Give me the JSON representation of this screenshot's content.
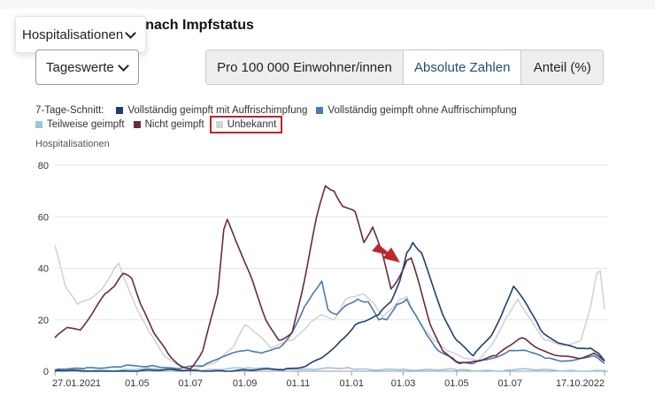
{
  "header": {
    "title": "n nach Impfstatus"
  },
  "metric_dropdown": {
    "label": "Hospitalisationen",
    "icon": "chevron-down-icon"
  },
  "period_select": {
    "label": "Tageswerte",
    "icon": "chevron-down-icon"
  },
  "segments": [
    {
      "label": "Pro 100 000 Einwohner/innen",
      "selected": false
    },
    {
      "label": "Absolute Zahlen",
      "selected": true
    },
    {
      "label": "Anteil (%)",
      "selected": false
    }
  ],
  "legend": {
    "prefix": "7-Tage-Schnitt:",
    "items": [
      {
        "label": "Vollständig geimpft mit Auffrischimpfung",
        "color": "#1f3f73"
      },
      {
        "label": "Vollständig geimpft ohne Auffrischimpfung",
        "color": "#4a7ab3"
      },
      {
        "label": "Teilweise geimpft",
        "color": "#9cc3e0"
      },
      {
        "label": "Nicht geimpft",
        "color": "#6b2a3e"
      },
      {
        "label": "Unbekannt",
        "color": "#d3d3d3",
        "highlighted": true
      }
    ]
  },
  "annotation": {
    "arrow_color": "#c0242c"
  },
  "chart_data": {
    "type": "line",
    "ylabel": "Hospitalisationen",
    "ylim": [
      0,
      80
    ],
    "yticks": [
      0,
      20,
      40,
      60,
      80
    ],
    "xlim": [
      "2021-01-27",
      "2022-10-17"
    ],
    "xticks": [
      {
        "date": "2021-01-27",
        "label": "27.01.2021"
      },
      {
        "date": "2021-05-01",
        "label": "01.05"
      },
      {
        "date": "2021-07-01",
        "label": "01.07"
      },
      {
        "date": "2021-09-01",
        "label": "01.09"
      },
      {
        "date": "2021-11-01",
        "label": "01.11"
      },
      {
        "date": "2022-01-01",
        "label": "01.01"
      },
      {
        "date": "2022-03-01",
        "label": "01.03"
      },
      {
        "date": "2022-05-01",
        "label": "01.05"
      },
      {
        "date": "2022-07-01",
        "label": "01.07"
      },
      {
        "date": "2022-10-17",
        "label": "17.10.2022"
      }
    ],
    "grid": true,
    "series": [
      {
        "name": "Unbekannt",
        "color": "#d3d3d3",
        "points": [
          [
            "2021-01-27",
            49
          ],
          [
            "2021-02-08",
            33
          ],
          [
            "2021-02-22",
            26
          ],
          [
            "2021-03-08",
            28
          ],
          [
            "2021-03-22",
            32
          ],
          [
            "2021-04-05",
            40
          ],
          [
            "2021-04-10",
            42
          ],
          [
            "2021-04-20",
            33
          ],
          [
            "2021-05-01",
            24
          ],
          [
            "2021-05-15",
            15
          ],
          [
            "2021-06-01",
            6
          ],
          [
            "2021-06-20",
            2
          ],
          [
            "2021-07-05",
            1
          ],
          [
            "2021-08-01",
            4
          ],
          [
            "2021-08-20",
            10
          ],
          [
            "2021-09-01",
            18
          ],
          [
            "2021-09-20",
            13
          ],
          [
            "2021-10-01",
            9
          ],
          [
            "2021-10-25",
            12
          ],
          [
            "2021-11-15",
            19
          ],
          [
            "2021-11-28",
            22
          ],
          [
            "2021-12-12",
            20
          ],
          [
            "2021-12-25",
            28
          ],
          [
            "2022-01-05",
            29
          ],
          [
            "2022-01-15",
            30
          ],
          [
            "2022-01-25",
            27
          ],
          [
            "2022-02-05",
            21
          ],
          [
            "2022-02-15",
            24
          ],
          [
            "2022-02-25",
            28
          ],
          [
            "2022-03-05",
            29
          ],
          [
            "2022-03-15",
            22
          ],
          [
            "2022-03-25",
            16
          ],
          [
            "2022-04-05",
            12
          ],
          [
            "2022-04-20",
            8
          ],
          [
            "2022-05-10",
            5
          ],
          [
            "2022-05-25",
            4
          ],
          [
            "2022-06-10",
            10
          ],
          [
            "2022-06-25",
            20
          ],
          [
            "2022-07-10",
            28
          ],
          [
            "2022-07-25",
            20
          ],
          [
            "2022-08-10",
            12
          ],
          [
            "2022-09-01",
            10
          ],
          [
            "2022-09-20",
            12
          ],
          [
            "2022-10-01",
            25
          ],
          [
            "2022-10-08",
            38
          ],
          [
            "2022-10-12",
            39
          ],
          [
            "2022-10-17",
            24
          ]
        ]
      },
      {
        "name": "Teilweise geimpft",
        "color": "#9cc3e0",
        "points": [
          [
            "2021-01-27",
            0.3
          ],
          [
            "2021-05-01",
            0.8
          ],
          [
            "2021-07-01",
            0.4
          ],
          [
            "2021-09-01",
            1
          ],
          [
            "2021-11-01",
            0.8
          ],
          [
            "2022-01-01",
            1
          ],
          [
            "2022-03-01",
            0.8
          ],
          [
            "2022-05-01",
            0.4
          ],
          [
            "2022-07-01",
            0.5
          ],
          [
            "2022-10-17",
            0.3
          ]
        ]
      },
      {
        "name": "Vollständig geimpft ohne Auffrischimpfung",
        "color": "#4a7ab3",
        "points": [
          [
            "2021-01-27",
            0.5
          ],
          [
            "2021-03-01",
            1
          ],
          [
            "2021-04-15",
            2
          ],
          [
            "2021-05-15",
            2
          ],
          [
            "2021-06-15",
            1
          ],
          [
            "2021-07-15",
            2
          ],
          [
            "2021-08-10",
            6
          ],
          [
            "2021-09-01",
            8
          ],
          [
            "2021-09-20",
            7
          ],
          [
            "2021-10-10",
            9
          ],
          [
            "2021-10-25",
            15
          ],
          [
            "2021-11-08",
            25
          ],
          [
            "2021-11-22",
            32
          ],
          [
            "2021-11-28",
            35
          ],
          [
            "2021-12-05",
            24
          ],
          [
            "2021-12-15",
            22
          ],
          [
            "2021-12-28",
            26
          ],
          [
            "2022-01-08",
            28
          ],
          [
            "2022-01-20",
            27
          ],
          [
            "2022-02-01",
            20
          ],
          [
            "2022-02-10",
            20
          ],
          [
            "2022-02-22",
            26
          ],
          [
            "2022-03-05",
            28
          ],
          [
            "2022-03-15",
            22
          ],
          [
            "2022-03-28",
            14
          ],
          [
            "2022-04-10",
            8
          ],
          [
            "2022-04-30",
            4
          ],
          [
            "2022-05-20",
            3
          ],
          [
            "2022-06-10",
            5
          ],
          [
            "2022-06-30",
            8
          ],
          [
            "2022-07-20",
            8
          ],
          [
            "2022-08-10",
            5
          ],
          [
            "2022-09-01",
            4
          ],
          [
            "2022-09-20",
            5
          ],
          [
            "2022-10-05",
            6
          ],
          [
            "2022-10-17",
            3
          ]
        ]
      },
      {
        "name": "Nicht geimpft",
        "color": "#6b2a3e",
        "points": [
          [
            "2021-01-27",
            13
          ],
          [
            "2021-02-10",
            17
          ],
          [
            "2021-02-25",
            16
          ],
          [
            "2021-03-10",
            22
          ],
          [
            "2021-03-25",
            30
          ],
          [
            "2021-04-05",
            33
          ],
          [
            "2021-04-15",
            38
          ],
          [
            "2021-04-25",
            36
          ],
          [
            "2021-05-05",
            26
          ],
          [
            "2021-05-20",
            15
          ],
          [
            "2021-06-05",
            7
          ],
          [
            "2021-06-20",
            2
          ],
          [
            "2021-07-01",
            1
          ],
          [
            "2021-07-15",
            8
          ],
          [
            "2021-08-01",
            30
          ],
          [
            "2021-08-08",
            55
          ],
          [
            "2021-08-12",
            59
          ],
          [
            "2021-08-25",
            48
          ],
          [
            "2021-09-10",
            35
          ],
          [
            "2021-09-25",
            20
          ],
          [
            "2021-10-10",
            12
          ],
          [
            "2021-10-25",
            15
          ],
          [
            "2021-11-08",
            35
          ],
          [
            "2021-11-22",
            60
          ],
          [
            "2021-12-02",
            72
          ],
          [
            "2021-12-12",
            70
          ],
          [
            "2021-12-22",
            64
          ],
          [
            "2022-01-05",
            62
          ],
          [
            "2022-01-15",
            50
          ],
          [
            "2022-01-25",
            56
          ],
          [
            "2022-02-05",
            46
          ],
          [
            "2022-02-15",
            32
          ],
          [
            "2022-02-22",
            35
          ],
          [
            "2022-03-05",
            43
          ],
          [
            "2022-03-10",
            44
          ],
          [
            "2022-03-20",
            33
          ],
          [
            "2022-04-01",
            18
          ],
          [
            "2022-04-15",
            8
          ],
          [
            "2022-05-05",
            3
          ],
          [
            "2022-05-25",
            4
          ],
          [
            "2022-06-15",
            6
          ],
          [
            "2022-07-01",
            10
          ],
          [
            "2022-07-15",
            13
          ],
          [
            "2022-08-01",
            9
          ],
          [
            "2022-08-25",
            6
          ],
          [
            "2022-09-20",
            5
          ],
          [
            "2022-10-05",
            7
          ],
          [
            "2022-10-17",
            4
          ]
        ]
      },
      {
        "name": "Vollständig geimpft mit Auffrischimpfung",
        "color": "#1f3f73",
        "points": [
          [
            "2021-01-27",
            0
          ],
          [
            "2021-10-15",
            0.5
          ],
          [
            "2021-11-10",
            2
          ],
          [
            "2021-12-01",
            6
          ],
          [
            "2021-12-20",
            12
          ],
          [
            "2022-01-05",
            18
          ],
          [
            "2022-01-20",
            20
          ],
          [
            "2022-02-01",
            22
          ],
          [
            "2022-02-15",
            27
          ],
          [
            "2022-02-25",
            35
          ],
          [
            "2022-03-05",
            46
          ],
          [
            "2022-03-12",
            50
          ],
          [
            "2022-03-22",
            46
          ],
          [
            "2022-04-01",
            36
          ],
          [
            "2022-04-15",
            22
          ],
          [
            "2022-05-01",
            12
          ],
          [
            "2022-05-20",
            6
          ],
          [
            "2022-06-10",
            14
          ],
          [
            "2022-06-25",
            25
          ],
          [
            "2022-07-05",
            33
          ],
          [
            "2022-07-20",
            26
          ],
          [
            "2022-08-05",
            16
          ],
          [
            "2022-08-25",
            11
          ],
          [
            "2022-09-15",
            9
          ],
          [
            "2022-10-01",
            9
          ],
          [
            "2022-10-10",
            7
          ],
          [
            "2022-10-17",
            4
          ]
        ]
      }
    ]
  }
}
